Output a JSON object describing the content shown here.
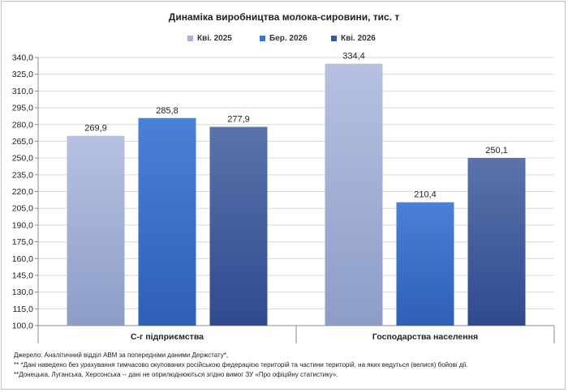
{
  "chart_data": {
    "type": "bar",
    "title": "Динаміка виробництва молока-сировини, тис. т",
    "categories": [
      "С-г підприємства",
      "Господарства населення"
    ],
    "series": [
      {
        "name": "Кві. 2025",
        "values": [
          269.9,
          334.4
        ],
        "color": "#a4b1d6",
        "labels": [
          "269,9",
          "334,4"
        ]
      },
      {
        "name": "Бер. 2026",
        "values": [
          285.8,
          210.4
        ],
        "color": "#3f72c8",
        "labels": [
          "285,8",
          "210,4"
        ]
      },
      {
        "name": "Кві. 2026",
        "values": [
          277.9,
          250.1
        ],
        "color": "#3a58a0",
        "labels": [
          "277,9",
          "250,1"
        ]
      }
    ],
    "ylim": [
      100,
      340
    ],
    "yticks": [
      100,
      115,
      130,
      145,
      160,
      175,
      190,
      205,
      220,
      235,
      250,
      265,
      280,
      295,
      310,
      325,
      340
    ],
    "ytick_labels": [
      "100,0",
      "115,0",
      "130,0",
      "145,0",
      "160,0",
      "175,0",
      "190,0",
      "205,0",
      "220,0",
      "235,0",
      "250,0",
      "265,0",
      "280,0",
      "295,0",
      "310,0",
      "325,0",
      "340,0"
    ],
    "grid": true,
    "legend_position": "top"
  },
  "footnotes": [
    "Джерело:  Аналітичний відділ АВМ за попередніми даними Держстату*,",
    "** *Дані наведено  без урахування тимчасово окупованих російською федерацією територій та частини територій, на яких ведуться  (велися) бойові дії.",
    "**Донецька,  Луганська, Херсонська -- дані не оприлюднюються  згідно вимог ЗУ «Про офіційну статистику»."
  ]
}
